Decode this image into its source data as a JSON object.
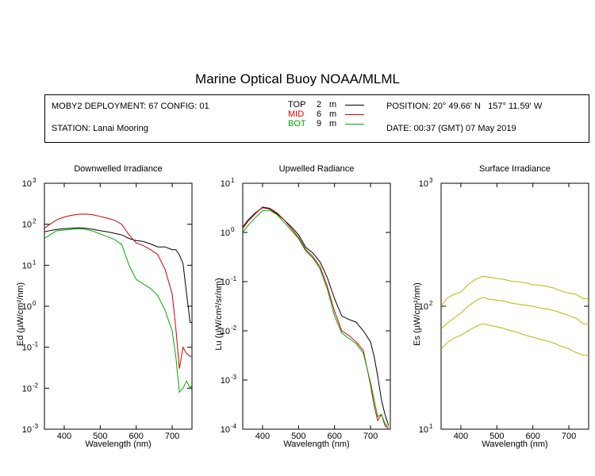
{
  "title": "Marine Optical Buoy NOAA/MLML",
  "info": {
    "deployment": "MOBY2 DEPLOYMENT: 67 CONFIG: 01",
    "station": "STATION: Lanai Mooring",
    "position": "POSITION: 20° 49.66' N   157° 11.59' W",
    "date": "DATE: 00:37 (GMT) 07 May 2019",
    "depths": [
      {
        "name": "TOP",
        "depth": "2",
        "unit": "m",
        "color": "#000000"
      },
      {
        "name": "MID",
        "depth": "6",
        "unit": "m",
        "color": "#cc0000"
      },
      {
        "name": "BOT",
        "depth": "9",
        "unit": "m",
        "color": "#00aa00"
      }
    ]
  },
  "chart_data": [
    {
      "type": "line",
      "title": "Downwelled Irradiance",
      "xlabel": "Wavelength (nm)",
      "ylabel": "Ed  (µW/cm²/nm)",
      "yscale": "log",
      "xlim": [
        345,
        755
      ],
      "ylim": [
        0.001,
        1000
      ],
      "xticks": [
        "400",
        "500",
        "600",
        "700"
      ],
      "yticks": [
        {
          "base": "10",
          "exp": "-3"
        },
        {
          "base": "10",
          "exp": "-2"
        },
        {
          "base": "10",
          "exp": "-1"
        },
        {
          "base": "10",
          "exp": "0"
        },
        {
          "base": "10",
          "exp": "1"
        },
        {
          "base": "10",
          "exp": "2"
        },
        {
          "base": "10",
          "exp": "3"
        }
      ],
      "series": [
        {
          "name": "TOP",
          "color": "#000000",
          "x": [
            345,
            360,
            380,
            400,
            420,
            440,
            460,
            480,
            500,
            520,
            540,
            560,
            580,
            600,
            620,
            640,
            660,
            680,
            700,
            710,
            720,
            730,
            740,
            750,
            755
          ],
          "y": [
            65,
            70,
            75,
            78,
            80,
            82,
            80,
            75,
            70,
            65,
            60,
            55,
            45,
            40,
            38,
            33,
            28,
            28,
            24,
            24,
            18,
            11,
            2,
            0.4,
            0.4
          ]
        },
        {
          "name": "MID",
          "color": "#cc0000",
          "x": [
            345,
            360,
            380,
            400,
            420,
            440,
            460,
            480,
            500,
            520,
            540,
            560,
            580,
            600,
            620,
            640,
            660,
            680,
            700,
            710,
            720,
            730,
            740,
            750,
            755
          ],
          "y": [
            80,
            100,
            130,
            150,
            165,
            175,
            178,
            170,
            155,
            140,
            125,
            100,
            55,
            35,
            30,
            24,
            18,
            8,
            2,
            0.3,
            0.03,
            0.1,
            0.07,
            0.06,
            0.06
          ]
        },
        {
          "name": "BOT",
          "color": "#00aa00",
          "x": [
            345,
            360,
            380,
            400,
            420,
            440,
            460,
            480,
            500,
            520,
            540,
            560,
            580,
            600,
            620,
            640,
            660,
            680,
            700,
            710,
            720,
            730,
            740,
            750,
            755
          ],
          "y": [
            45,
            55,
            70,
            72,
            75,
            78,
            75,
            68,
            58,
            50,
            42,
            32,
            10,
            4.5,
            3.5,
            2.7,
            1.8,
            0.8,
            0.25,
            0.06,
            0.008,
            0.01,
            0.015,
            0.01,
            0.012
          ]
        }
      ]
    },
    {
      "type": "line",
      "title": "Upwelled Radiance",
      "xlabel": "Wavelength (nm)",
      "ylabel": "Lu  (µW/cm²/sr/nm)",
      "yscale": "log",
      "xlim": [
        345,
        755
      ],
      "ylim": [
        0.0001,
        10
      ],
      "xticks": [
        "400",
        "500",
        "600",
        "700"
      ],
      "yticks": [
        {
          "base": "10",
          "exp": "-4"
        },
        {
          "base": "10",
          "exp": "-3"
        },
        {
          "base": "10",
          "exp": "-2"
        },
        {
          "base": "10",
          "exp": "-1"
        },
        {
          "base": "10",
          "exp": "0"
        },
        {
          "base": "10",
          "exp": "1"
        }
      ],
      "series": [
        {
          "name": "TOP",
          "color": "#000000",
          "x": [
            345,
            360,
            380,
            400,
            420,
            440,
            460,
            480,
            500,
            520,
            540,
            560,
            580,
            600,
            620,
            640,
            660,
            680,
            700,
            710,
            720,
            730,
            740,
            750
          ],
          "y": [
            1.3,
            1.8,
            2.5,
            3.2,
            3.0,
            2.4,
            1.8,
            1.3,
            0.9,
            0.5,
            0.38,
            0.25,
            0.12,
            0.045,
            0.02,
            0.017,
            0.015,
            0.01,
            0.006,
            0.003,
            0.0012,
            0.0004,
            0.0002,
            0.00012
          ]
        },
        {
          "name": "MID",
          "color": "#cc0000",
          "x": [
            345,
            360,
            380,
            400,
            420,
            440,
            460,
            480,
            500,
            520,
            540,
            560,
            580,
            600,
            620,
            640,
            660,
            680,
            700,
            710,
            720,
            730,
            740,
            750
          ],
          "y": [
            1.2,
            1.7,
            2.4,
            3.3,
            3.1,
            2.5,
            1.8,
            1.2,
            0.8,
            0.45,
            0.32,
            0.2,
            0.08,
            0.025,
            0.01,
            0.008,
            0.006,
            0.004,
            0.0008,
            0.0003,
            0.00015,
            0.0002,
            0.00012,
            0.0001
          ]
        },
        {
          "name": "BOT",
          "color": "#00aa00",
          "x": [
            345,
            360,
            380,
            400,
            420,
            440,
            460,
            480,
            500,
            520,
            540,
            560,
            580,
            600,
            620,
            640,
            660,
            680,
            700,
            710,
            720,
            730,
            740,
            750
          ],
          "y": [
            1.0,
            1.4,
            2.0,
            2.8,
            2.8,
            2.3,
            1.6,
            1.1,
            0.75,
            0.42,
            0.3,
            0.18,
            0.07,
            0.02,
            0.009,
            0.007,
            0.0055,
            0.0035,
            0.0009,
            0.0004,
            0.00018,
            0.0002,
            0.00013,
            0.00011
          ]
        }
      ]
    },
    {
      "type": "line",
      "title": "Surface Irradiance",
      "xlabel": "Wavelength (nm)",
      "ylabel": "Es  (µW/cm²/nm)",
      "yscale": "log",
      "xlim": [
        345,
        755
      ],
      "ylim": [
        10,
        1000
      ],
      "xticks": [
        "400",
        "500",
        "600",
        "700"
      ],
      "yticks": [
        {
          "base": "10",
          "exp": "1"
        },
        {
          "base": "10",
          "exp": "2"
        },
        {
          "base": "10",
          "exp": "3"
        }
      ],
      "series": [
        {
          "color": "#b8b800",
          "x": [
            345,
            360,
            380,
            400,
            420,
            440,
            460,
            480,
            500,
            520,
            540,
            560,
            580,
            600,
            620,
            640,
            660,
            680,
            700,
            720,
            740,
            755
          ],
          "y": [
            100,
            115,
            125,
            130,
            150,
            165,
            175,
            172,
            168,
            165,
            160,
            158,
            155,
            150,
            148,
            145,
            140,
            132,
            128,
            125,
            115,
            115
          ]
        },
        {
          "color": "#b8b800",
          "x": [
            345,
            360,
            380,
            400,
            420,
            440,
            460,
            480,
            500,
            520,
            540,
            560,
            580,
            600,
            620,
            640,
            660,
            680,
            700,
            720,
            740,
            755
          ],
          "y": [
            65,
            72,
            80,
            88,
            100,
            110,
            118,
            114,
            112,
            110,
            106,
            104,
            102,
            100,
            97,
            95,
            92,
            88,
            84,
            80,
            72,
            72
          ]
        },
        {
          "color": "#b8b800",
          "x": [
            345,
            360,
            380,
            400,
            420,
            440,
            460,
            480,
            500,
            520,
            540,
            560,
            580,
            600,
            620,
            640,
            660,
            680,
            700,
            720,
            740,
            755
          ],
          "y": [
            45,
            50,
            55,
            58,
            63,
            68,
            72,
            70,
            68,
            66,
            63,
            61,
            58,
            56,
            54,
            52,
            50,
            47,
            45,
            42,
            40,
            40
          ]
        }
      ]
    }
  ]
}
